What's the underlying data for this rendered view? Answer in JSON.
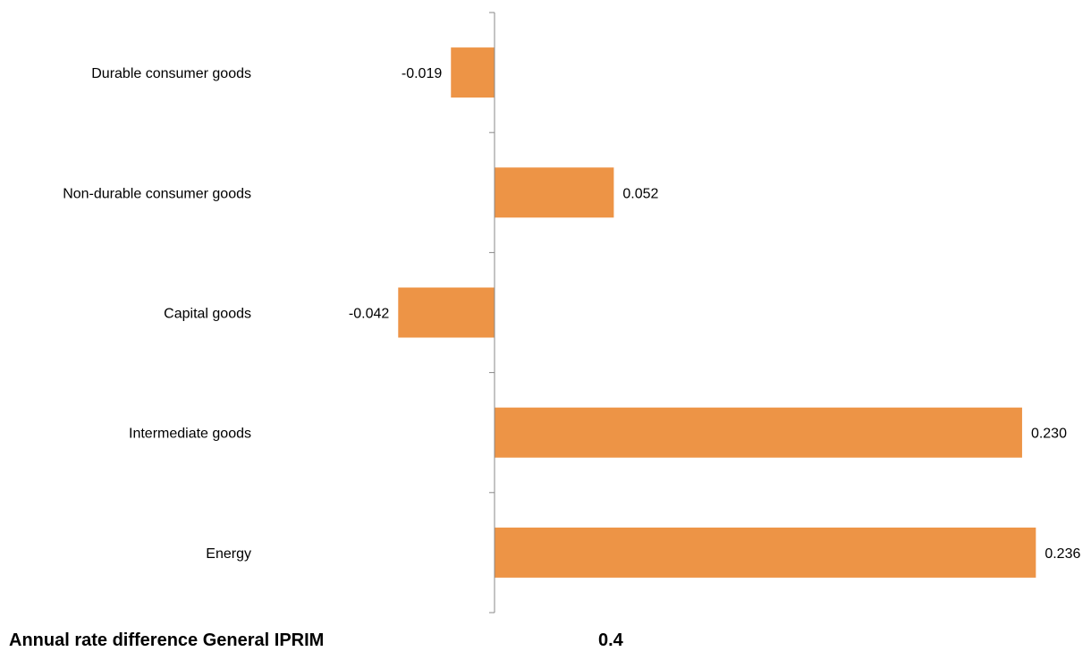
{
  "chart_data": {
    "type": "bar",
    "orientation": "horizontal",
    "categories": [
      "Durable consumer goods",
      "Non-durable consumer goods",
      "Capital goods",
      "Intermediate goods",
      "Energy"
    ],
    "values": [
      -0.019,
      0.052,
      -0.042,
      0.23,
      0.236
    ],
    "data_labels": [
      "-0.019",
      "0.052",
      "-0.042",
      "0.230",
      "0.236"
    ],
    "bar_color": "#ED9446",
    "axis_color": "#888888",
    "xlim": [
      -0.06,
      0.24
    ],
    "grid": false,
    "legend": "none"
  },
  "footer": {
    "label": "Annual rate difference General IPRIM",
    "value": "0.4"
  }
}
